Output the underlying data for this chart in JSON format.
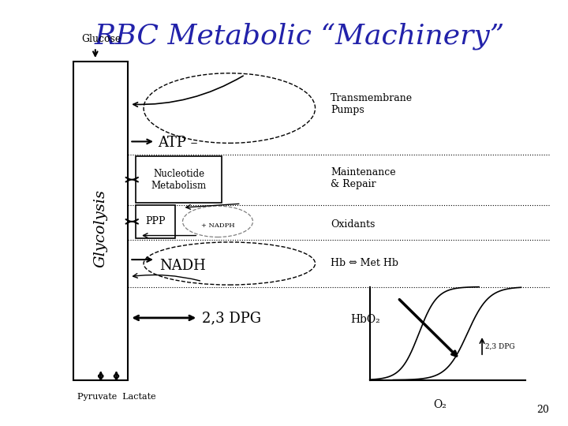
{
  "title": "RBC Metabolic “Machinery”",
  "title_color": "#2222aa",
  "title_fontsize": 26,
  "bg_color": "#ffffff",
  "labels": {
    "glucose": "Glucose",
    "glycolysis": "Glycolysis",
    "atp": "ATP",
    "nucleotide": "Nucleotide\nMetabolism",
    "ppp": "PPP",
    "nadph": "+ NADPH",
    "nadh": "NADH",
    "dpg": "2,3 DPG",
    "pyruvate_lactate": "Pyruvate  Lactate",
    "transmembrane": "Transmembrane\nPumps",
    "maintenance": "Maintenance\n& Repair",
    "oxidants": "Oxidants",
    "hb_methb": "Hb ⇔ Met Hb",
    "hbo2": "HbO₂",
    "o2": "O₂",
    "dpg_label": "2,3 DPG",
    "page_num": "20"
  }
}
